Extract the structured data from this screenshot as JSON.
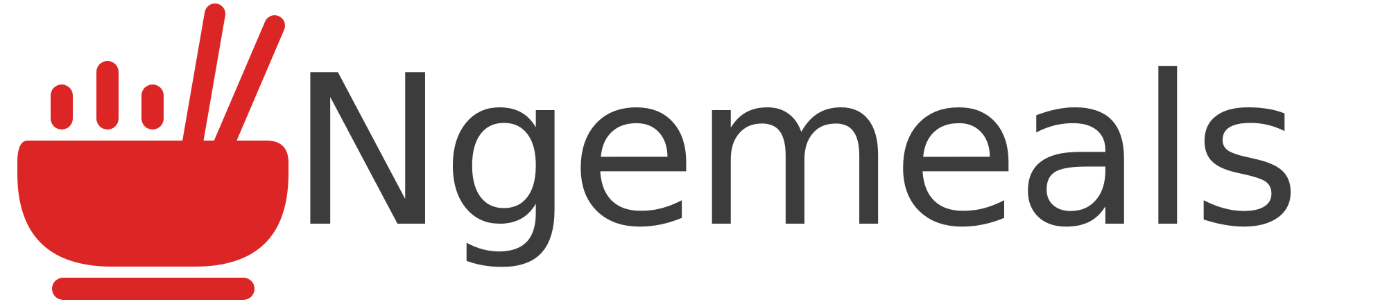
{
  "brand": {
    "name": "Ngemeals",
    "icon": "bowl-with-chopsticks-icon"
  },
  "colors": {
    "accent": "#DC2626",
    "text": "#3C3C3C",
    "background": "#FFFFFF"
  }
}
